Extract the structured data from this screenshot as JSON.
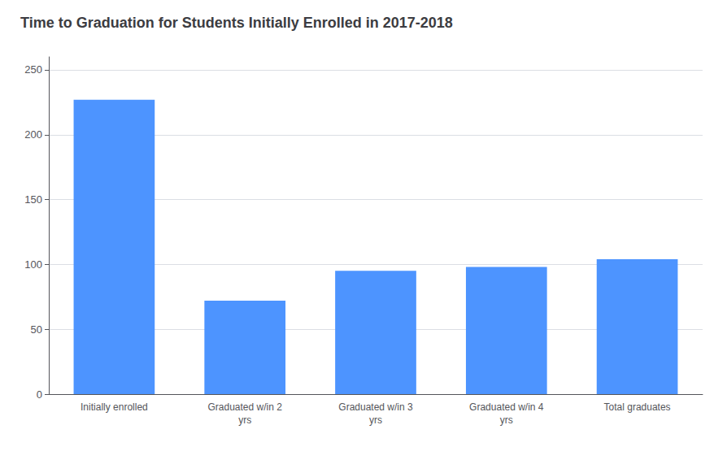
{
  "chart_data": {
    "type": "bar",
    "title": "Time to Graduation for Students Initially Enrolled in 2017-2018",
    "categories": [
      "Initially enrolled",
      "Graduated w/in 2\nyrs",
      "Graduated w/in 3\nyrs",
      "Graduated w/in 4\nyrs",
      "Total graduates"
    ],
    "values": [
      227,
      72,
      95,
      98,
      104
    ],
    "color": "#4d94ff",
    "ylim": [
      0,
      260
    ],
    "yticks": [
      0,
      50,
      100,
      150,
      200,
      250
    ],
    "grid": true
  }
}
